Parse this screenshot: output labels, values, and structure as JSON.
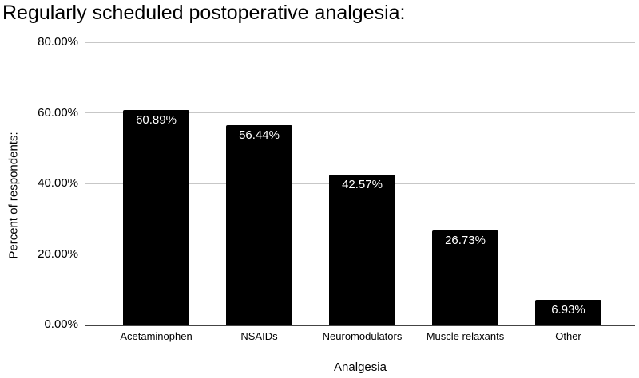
{
  "figure": {
    "background": "#ffffff"
  },
  "chart_data": {
    "type": "bar",
    "title": "Regularly scheduled postoperative analgesia:",
    "xlabel": "Analgesia",
    "ylabel": "Percent of respondents:",
    "categories": [
      "Acetaminophen",
      "NSAIDs",
      "Neuromodulators",
      "Muscle relaxants",
      "Other"
    ],
    "values": [
      60.89,
      56.44,
      42.57,
      26.73,
      6.93
    ],
    "value_labels": [
      "60.89%",
      "56.44%",
      "42.57%",
      "26.73%",
      "6.93%"
    ],
    "ylim": [
      0,
      80
    ],
    "yticks": [
      0,
      20,
      40,
      60,
      80
    ],
    "ytick_labels": [
      "0.00%",
      "20.00%",
      "40.00%",
      "60.00%",
      "80.00%"
    ],
    "grid": "horizontal",
    "legend": "none",
    "colors": {
      "bar": "#000000",
      "bar_label": "#ffffff",
      "gridline": "#c7c7c7",
      "axis_line": "#444444",
      "text": "#000000",
      "background": "#ffffff"
    }
  }
}
